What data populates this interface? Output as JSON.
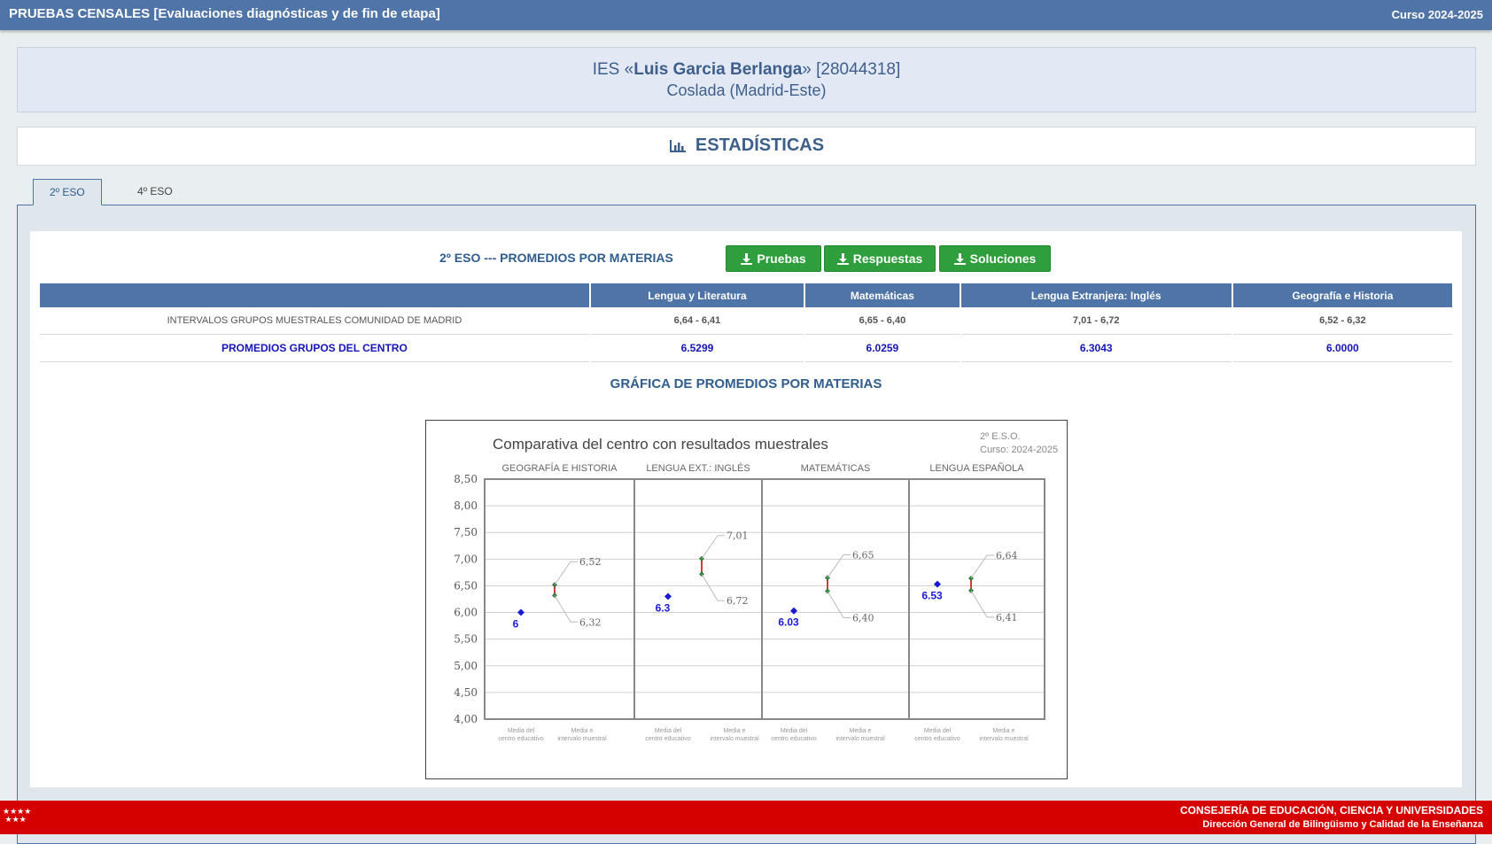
{
  "header": {
    "title": "PRUEBAS CENSALES [Evaluaciones diagnósticas y de fin de etapa]",
    "course": "Curso 2024-2025"
  },
  "school": {
    "prefix": "IES «",
    "name": "Luis Garcia Berlanga",
    "suffix": "» [28044318]",
    "location": "Coslada (Madrid-Este)"
  },
  "stats": {
    "title": "ESTADÍSTICAS",
    "icon": "bar-chart-icon"
  },
  "tabs": [
    {
      "label": "2º ESO",
      "active": true
    },
    {
      "label": "4º ESO",
      "active": false
    }
  ],
  "section": {
    "title": "2º ESO --- PROMEDIOS POR MATERIAS",
    "buttons": {
      "pruebas": "Pruebas",
      "respuestas": "Respuestas",
      "soluciones": "Soluciones"
    }
  },
  "table": {
    "headers": [
      "",
      "Lengua y Literatura",
      "Matemáticas",
      "Lengua Extranjera: Inglés",
      "Geografía e Historia"
    ],
    "rows": [
      {
        "label": "INTERVALOS GRUPOS MUESTRALES COMUNIDAD DE MADRID",
        "values": [
          "6,64 - 6,41",
          "6,65 - 6,40",
          "7,01 - 6,72",
          "6,52 - 6,32"
        ]
      },
      {
        "label": "PROMEDIOS GRUPOS DEL CENTRO",
        "values": [
          "6.5299",
          "6.0259",
          "6.3043",
          "6.0000"
        ]
      }
    ]
  },
  "chart_heading": "GRÁFICA DE PROMEDIOS POR MATERIAS",
  "chart_data": {
    "type": "scatter",
    "title": "Comparativa del centro con resultados muestrales",
    "subtitle": [
      "2º E.S.O.",
      "Curso: 2024-2025"
    ],
    "ylim": [
      4.0,
      8.5
    ],
    "yticks": [
      "8,50",
      "8,00",
      "7,50",
      "7,00",
      "6,50",
      "6,00",
      "5,50",
      "5,00",
      "4,50",
      "4,00"
    ],
    "x_labels": [
      "Media del centro educativo",
      "Media e intervalo muestral"
    ],
    "panels": [
      {
        "name": "GEOGRAFÍA E HISTORIA",
        "center": 6.0,
        "center_label": "6",
        "high": 6.52,
        "low": 6.32,
        "high_label": "6,52",
        "low_label": "6,32"
      },
      {
        "name": "LENGUA EXT.: INGLÉS",
        "center": 6.3,
        "center_label": "6.3",
        "high": 7.01,
        "low": 6.72,
        "high_label": "7,01",
        "low_label": "6,72"
      },
      {
        "name": "MATEMÁTICAS",
        "center": 6.03,
        "center_label": "6.03",
        "high": 6.65,
        "low": 6.4,
        "high_label": "6,65",
        "low_label": "6,40"
      },
      {
        "name": "LENGUA ESPAÑOLA",
        "center": 6.53,
        "center_label": "6.53",
        "high": 6.64,
        "low": 6.41,
        "high_label": "6,64",
        "low_label": "6,41"
      }
    ],
    "colors": {
      "center": "#1a1ad6",
      "interval": "#2e7d3a",
      "interval_mid": "#d23b3b",
      "grid": "#d0d0d0"
    }
  },
  "footer": {
    "line1": "CONSEJERÍA DE EDUCACIÓN, CIENCIA Y UNIVERSIDADES",
    "line2": "Dirección General de Bilingüismo y Calidad de la Enseñanza",
    "stars": "★★★★\n★★★"
  },
  "colors": {
    "header": "#4e74a8",
    "button": "#2f9e3c",
    "footer": "#d50000"
  }
}
